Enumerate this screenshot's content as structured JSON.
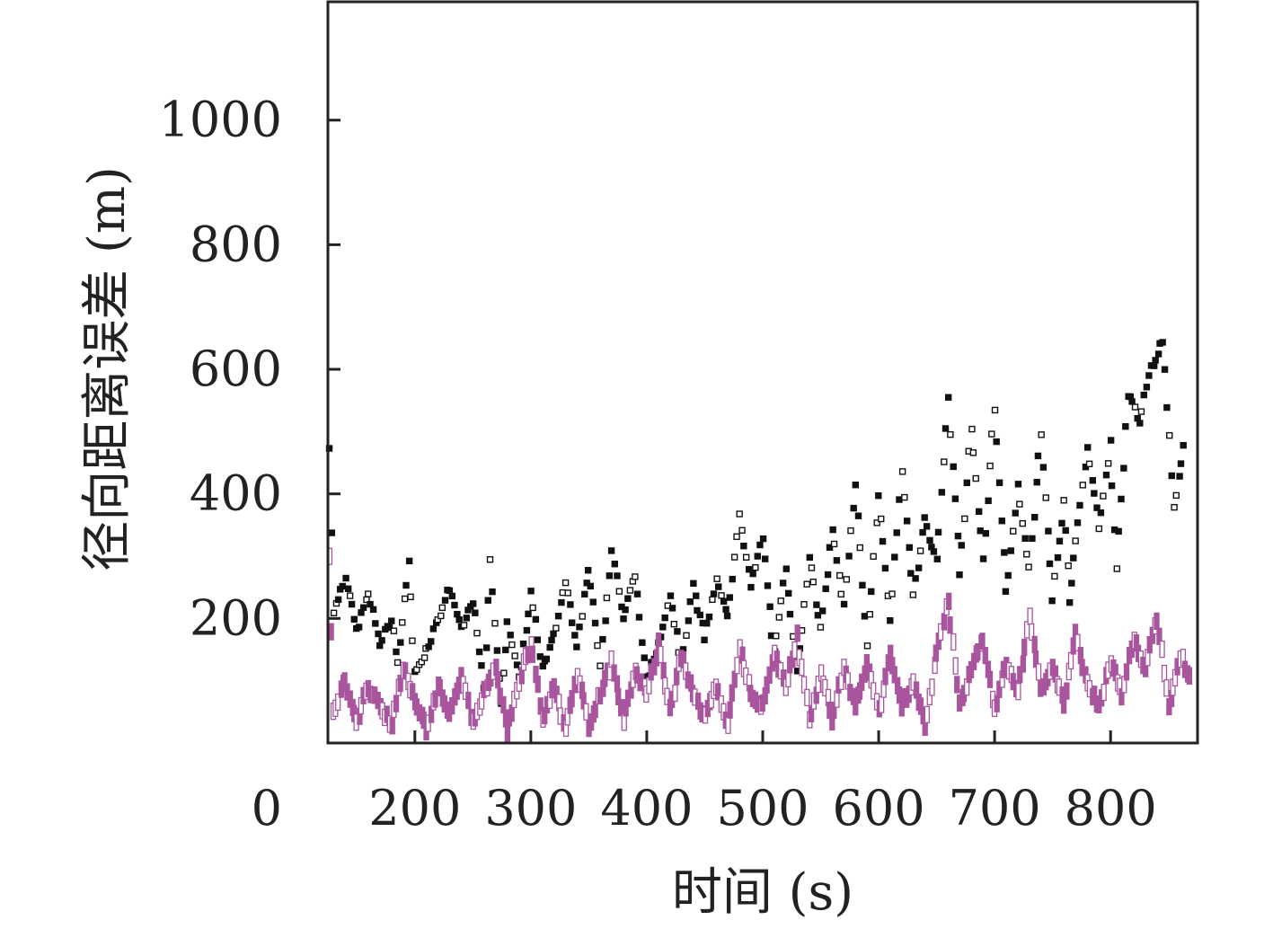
{
  "chart_data": {
    "type": "scatter",
    "xlabel": "时间 (s)",
    "ylabel": "径向距离误差 (m)",
    "xlim": [
      125,
      875
    ],
    "ylim": [
      0,
      1190
    ],
    "x_ticks": [
      200,
      300,
      400,
      500,
      600,
      700,
      800
    ],
    "y_ticks": [
      200,
      400,
      600,
      800,
      1000
    ],
    "origin_label": "0",
    "grid": false,
    "legend": "none",
    "series": [
      {
        "color": "#111111",
        "marker": "hollow-square",
        "keypoints": [
          [
            125,
            610
          ],
          [
            130,
            210
          ],
          [
            140,
            270
          ],
          [
            150,
            180
          ],
          [
            160,
            240
          ],
          [
            170,
            160
          ],
          [
            180,
            200
          ],
          [
            185,
            130
          ],
          [
            195,
            290
          ],
          [
            200,
            110
          ],
          [
            210,
            150
          ],
          [
            220,
            200
          ],
          [
            230,
            250
          ],
          [
            240,
            180
          ],
          [
            250,
            230
          ],
          [
            260,
            90
          ],
          [
            265,
            290
          ],
          [
            275,
            60
          ],
          [
            280,
            200
          ],
          [
            290,
            100
          ],
          [
            300,
            240
          ],
          [
            310,
            120
          ],
          [
            320,
            170
          ],
          [
            330,
            260
          ],
          [
            340,
            160
          ],
          [
            350,
            280
          ],
          [
            360,
            130
          ],
          [
            370,
            310
          ],
          [
            380,
            200
          ],
          [
            390,
            270
          ],
          [
            400,
            100
          ],
          [
            410,
            160
          ],
          [
            420,
            240
          ],
          [
            430,
            130
          ],
          [
            440,
            250
          ],
          [
            450,
            170
          ],
          [
            460,
            260
          ],
          [
            470,
            200
          ],
          [
            480,
            370
          ],
          [
            490,
            250
          ],
          [
            500,
            330
          ],
          [
            510,
            140
          ],
          [
            520,
            280
          ],
          [
            530,
            110
          ],
          [
            540,
            300
          ],
          [
            550,
            180
          ],
          [
            560,
            340
          ],
          [
            570,
            220
          ],
          [
            580,
            420
          ],
          [
            590,
            150
          ],
          [
            600,
            400
          ],
          [
            610,
            200
          ],
          [
            620,
            430
          ],
          [
            630,
            240
          ],
          [
            640,
            360
          ],
          [
            650,
            290
          ],
          [
            660,
            560
          ],
          [
            670,
            270
          ],
          [
            680,
            510
          ],
          [
            690,
            290
          ],
          [
            700,
            540
          ],
          [
            710,
            240
          ],
          [
            720,
            410
          ],
          [
            730,
            280
          ],
          [
            740,
            500
          ],
          [
            750,
            230
          ],
          [
            760,
            390
          ],
          [
            765,
            230
          ],
          [
            770,
            330
          ],
          [
            780,
            470
          ],
          [
            790,
            350
          ],
          [
            800,
            480
          ],
          [
            805,
            280
          ],
          [
            815,
            560
          ],
          [
            825,
            520
          ],
          [
            835,
            600
          ],
          [
            845,
            650
          ],
          [
            855,
            380
          ],
          [
            865,
            500
          ]
        ]
      },
      {
        "color": "#a8559e",
        "marker": "bar-dash",
        "keypoints": [
          [
            125,
            420
          ],
          [
            130,
            50
          ],
          [
            140,
            100
          ],
          [
            150,
            40
          ],
          [
            160,
            90
          ],
          [
            170,
            60
          ],
          [
            180,
            30
          ],
          [
            190,
            120
          ],
          [
            200,
            70
          ],
          [
            210,
            20
          ],
          [
            220,
            90
          ],
          [
            230,
            50
          ],
          [
            240,
            110
          ],
          [
            250,
            30
          ],
          [
            260,
            80
          ],
          [
            270,
            120
          ],
          [
            280,
            20
          ],
          [
            290,
            100
          ],
          [
            300,
            160
          ],
          [
            310,
            40
          ],
          [
            320,
            90
          ],
          [
            330,
            20
          ],
          [
            340,
            110
          ],
          [
            350,
            30
          ],
          [
            360,
            80
          ],
          [
            370,
            130
          ],
          [
            380,
            40
          ],
          [
            390,
            110
          ],
          [
            400,
            80
          ],
          [
            410,
            160
          ],
          [
            420,
            50
          ],
          [
            430,
            140
          ],
          [
            440,
            80
          ],
          [
            450,
            40
          ],
          [
            460,
            90
          ],
          [
            470,
            30
          ],
          [
            480,
            150
          ],
          [
            490,
            80
          ],
          [
            500,
            60
          ],
          [
            510,
            140
          ],
          [
            520,
            90
          ],
          [
            530,
            170
          ],
          [
            540,
            40
          ],
          [
            550,
            110
          ],
          [
            560,
            40
          ],
          [
            570,
            120
          ],
          [
            580,
            60
          ],
          [
            590,
            130
          ],
          [
            600,
            50
          ],
          [
            610,
            140
          ],
          [
            620,
            60
          ],
          [
            630,
            100
          ],
          [
            640,
            30
          ],
          [
            650,
            140
          ],
          [
            660,
            230
          ],
          [
            670,
            60
          ],
          [
            680,
            120
          ],
          [
            690,
            170
          ],
          [
            700,
            50
          ],
          [
            710,
            130
          ],
          [
            720,
            80
          ],
          [
            730,
            200
          ],
          [
            740,
            90
          ],
          [
            750,
            120
          ],
          [
            760,
            60
          ],
          [
            770,
            180
          ],
          [
            780,
            90
          ],
          [
            790,
            60
          ],
          [
            800,
            130
          ],
          [
            810,
            80
          ],
          [
            820,
            170
          ],
          [
            830,
            120
          ],
          [
            840,
            200
          ],
          [
            850,
            60
          ],
          [
            860,
            140
          ],
          [
            870,
            100
          ]
        ]
      }
    ]
  }
}
